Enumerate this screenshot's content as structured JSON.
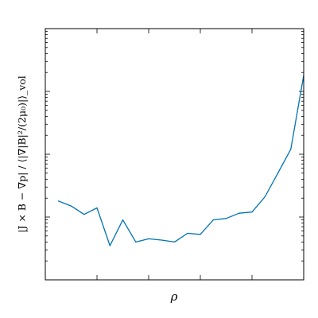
{
  "chart_data": {
    "type": "line",
    "xlabel": "ρ",
    "ylabel": "|J × B − ∇p| / ⟨|∇|B|²/(2μ₀)|⟩_vol",
    "x_tick_labels": [],
    "y_tick_labels": [],
    "y_scale": "log",
    "grid": false,
    "legend": "none",
    "series": [
      {
        "color": "#0072b2",
        "x": [
          0.05,
          0.1,
          0.15,
          0.2,
          0.25,
          0.3,
          0.35,
          0.4,
          0.45,
          0.5,
          0.55,
          0.6,
          0.65,
          0.7,
          0.75,
          0.8,
          0.85,
          0.9,
          0.95,
          1.0
        ],
        "y": [
          1.8,
          1.5,
          1.1,
          1.4,
          0.35,
          0.9,
          0.4,
          0.45,
          0.43,
          0.4,
          0.55,
          0.53,
          0.9,
          0.95,
          1.15,
          1.2,
          2.1,
          5.0,
          12.0,
          180.0
        ]
      }
    ]
  }
}
